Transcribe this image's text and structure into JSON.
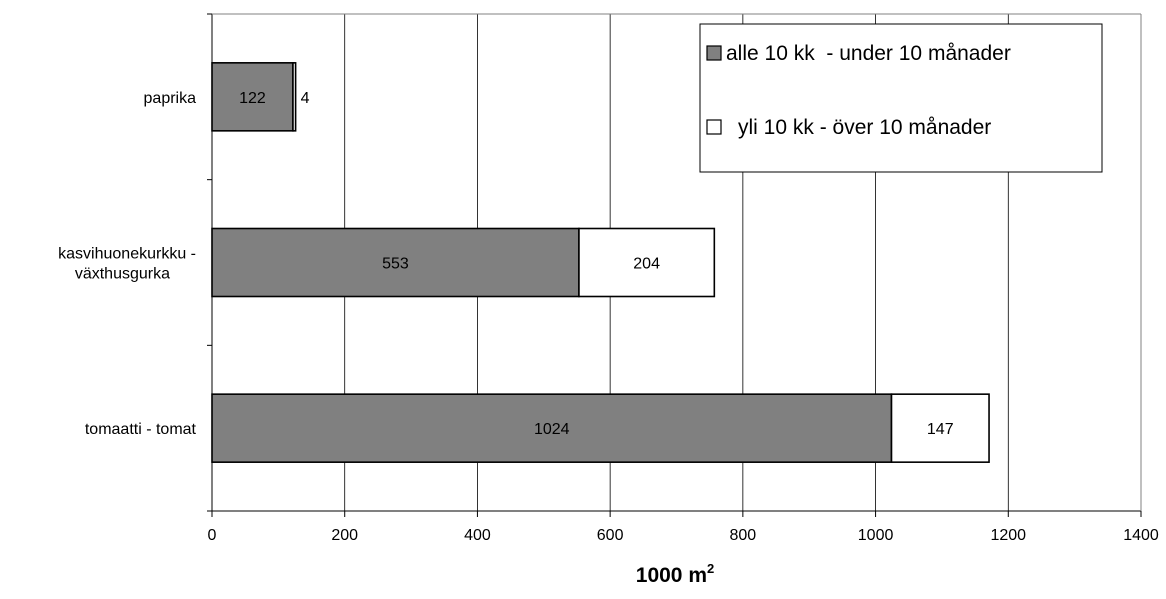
{
  "chart_data": {
    "type": "bar",
    "orientation": "horizontal",
    "stacked": true,
    "categories": [
      [
        "paprika"
      ],
      [
        "kasvihuonekurkku -",
        "växthusgurka"
      ],
      [
        "tomaatti - tomat"
      ]
    ],
    "series": [
      {
        "name": "alle 10 kk  - under 10 månader",
        "values": [
          122,
          553,
          1024
        ],
        "color": "#808080"
      },
      {
        "name": "yli 10 kk - över 10 månader",
        "values": [
          4,
          204,
          147
        ],
        "color": "#ffffff"
      }
    ],
    "xlabel": "1000 m",
    "xlabel_superscript": "2",
    "xlim": [
      0,
      1400
    ],
    "xticks": [
      0,
      200,
      400,
      600,
      800,
      1000,
      1200,
      1400
    ],
    "grid": "vertical",
    "legend_position": "top-right"
  }
}
